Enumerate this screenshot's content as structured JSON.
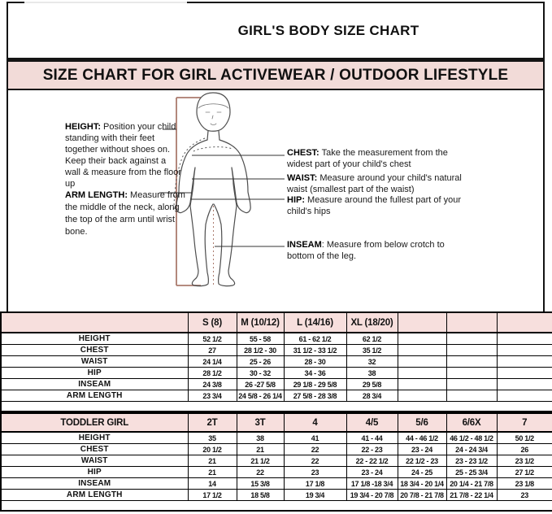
{
  "page": {
    "title": "GIRL'S BODY SIZE CHART",
    "banner": "SIZE CHART FOR GIRL ACTIVEWEAR / OUTDOOR LIFESTYLE"
  },
  "diagram": {
    "figure": "child-body-outline-front-view",
    "left_annotations": [
      {
        "label": "HEIGHT:",
        "text": " Position your child standing with their feet together without shoes on. Keep their back against a wall & measure from the floor up"
      },
      {
        "label": "ARM LENGTH:",
        "text": "  Measure from the middle of the neck, along the top of the arm until wrist bone."
      }
    ],
    "right_annotations": [
      {
        "label": "CHEST:",
        "text": " Take the measurement from the widest part of your child's chest"
      },
      {
        "label": "WAIST:",
        "text": " Measure around your child's natural waist (smallest part of the waist)"
      },
      {
        "label": "HIP:",
        "text": " Measure around the fullest part of your child's hips"
      },
      {
        "label": "INSEAM",
        "text": ": Measure from below crotch to bottom of the leg."
      }
    ]
  },
  "girls_table": {
    "size_headers": [
      "",
      "S (8)",
      "M (10/12)",
      "L (14/16)",
      "XL (18/20)",
      "",
      "",
      ""
    ],
    "rows": [
      {
        "label": "HEIGHT",
        "values": [
          "52 1/2",
          "55 - 58",
          "61 - 62 1/2",
          "62 1/2",
          "",
          "",
          ""
        ]
      },
      {
        "label": "CHEST",
        "values": [
          "27",
          "28 1/2 - 30",
          "31 1/2 - 33 1/2",
          "35 1/2",
          "",
          "",
          ""
        ]
      },
      {
        "label": "WAIST",
        "values": [
          "24 1/4",
          "25 - 26",
          "28 - 30",
          "32",
          "",
          "",
          ""
        ]
      },
      {
        "label": "HIP",
        "values": [
          "28 1/2",
          "30 - 32",
          "34 - 36",
          "38",
          "",
          "",
          ""
        ]
      },
      {
        "label": "INSEAM",
        "values": [
          "24 3/8",
          "26 -27 5/8",
          "29 1/8 - 29 5/8",
          "29 5/8",
          "",
          "",
          ""
        ]
      },
      {
        "label": "ARM LENGTH",
        "values": [
          "23 3/4",
          "24 5/8 - 26 1/4",
          "27 5/8 - 28 3/8",
          "28 3/4",
          "",
          "",
          ""
        ]
      }
    ]
  },
  "toddler_table": {
    "size_headers": [
      "TODDLER GIRL",
      "2T",
      "3T",
      "4",
      "4/5",
      "5/6",
      "6/6X",
      "7"
    ],
    "rows": [
      {
        "label": "HEIGHT",
        "values": [
          "35",
          "38",
          "41",
          "41 - 44",
          "44 - 46 1/2",
          "46 1/2 - 48 1/2",
          "50 1/2"
        ]
      },
      {
        "label": "CHEST",
        "values": [
          "20 1/2",
          "21",
          "22",
          "22 - 23",
          "23 - 24",
          "24 - 24 3/4",
          "26"
        ]
      },
      {
        "label": "WAIST",
        "values": [
          "21",
          "21 1/2",
          "22",
          "22 - 22 1/2",
          "22 1/2 - 23",
          "23 - 23 1/2",
          "23 1/2"
        ]
      },
      {
        "label": "HIP",
        "values": [
          "21",
          "22",
          "23",
          "23 - 24",
          "24 - 25",
          "25 - 25 3/4",
          "27 1/2"
        ]
      },
      {
        "label": "INSEAM",
        "values": [
          "14",
          "15 3/8",
          "17 1/8",
          "17 1/8 -18 3/4",
          "18 3/4 - 20 1/4",
          "20 1/4 - 21 7/8",
          "23 1/8"
        ]
      },
      {
        "label": "ARM LENGTH",
        "values": [
          "17 1/2",
          "18 5/8",
          "19 3/4",
          "19 3/4 - 20 7/8",
          "20 7/8 - 21 7/8",
          "21 7/8 - 22 1/4",
          "23"
        ]
      }
    ]
  },
  "colors": {
    "banner_bg": "#f2dbd8",
    "table_header_bg": "#f7dfdd",
    "height_line": "#ab7b6e",
    "figure_outline": "#4d4d4d",
    "border": "#141414"
  }
}
